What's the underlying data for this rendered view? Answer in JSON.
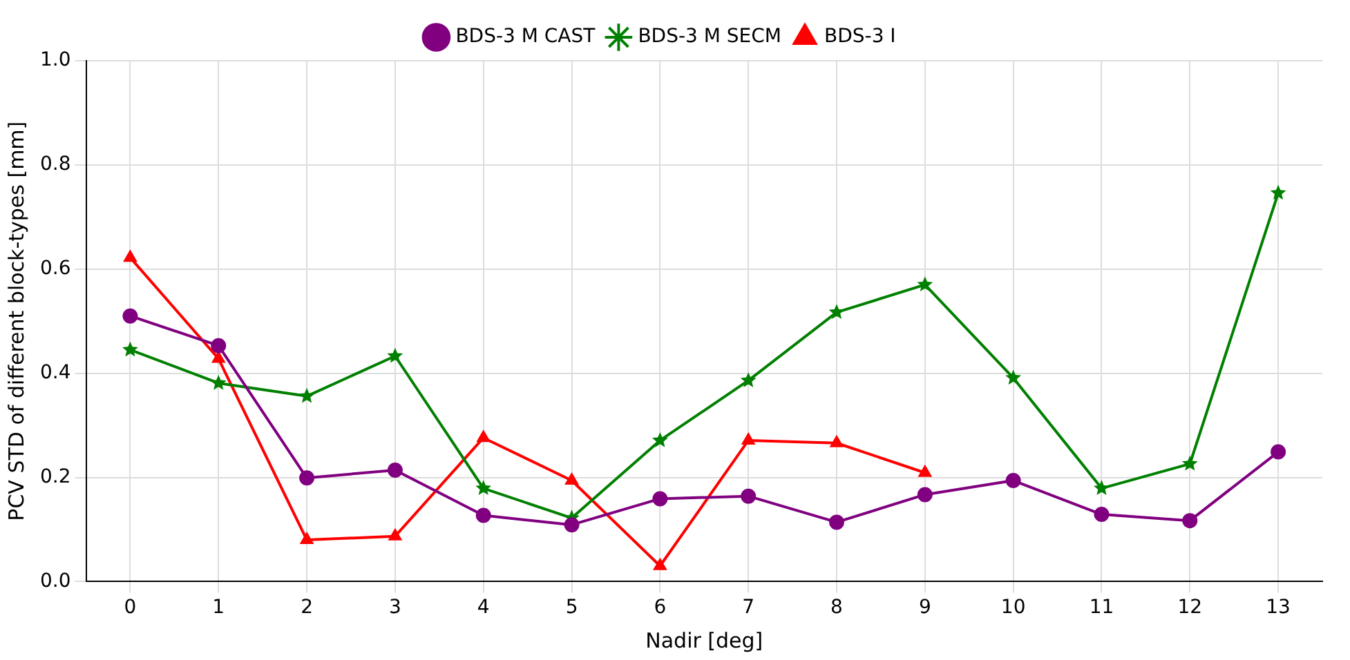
{
  "chart_data": {
    "type": "line",
    "xlabel": "Nadir [deg]",
    "ylabel": "PCV STD of different block-types [mm]",
    "x": [
      0,
      1,
      2,
      3,
      4,
      5,
      6,
      7,
      8,
      9,
      10,
      11,
      12,
      13
    ],
    "xlim": [
      -0.5,
      13.5
    ],
    "xticks": [
      0,
      1,
      2,
      3,
      4,
      5,
      6,
      7,
      8,
      9,
      10,
      11,
      12,
      13
    ],
    "ylim": [
      0,
      1
    ],
    "yticks": [
      {
        "value": 0,
        "label": "0.0"
      },
      {
        "value": 0.2,
        "label": "0.2"
      },
      {
        "value": 0.4,
        "label": "0.4"
      },
      {
        "value": 0.6,
        "label": "0.6"
      },
      {
        "value": 0.8,
        "label": "0.8"
      },
      {
        "value": 1,
        "label": "1.0"
      }
    ],
    "grid": true,
    "legend": "top",
    "line_style": "solid",
    "series": [
      {
        "name": "BDS-3 M CAST",
        "color": "#800080",
        "marker": "circle",
        "values": [
          0.51,
          0.453,
          0.199,
          0.214,
          0.127,
          0.109,
          0.159,
          0.164,
          0.114,
          0.167,
          0.194,
          0.129,
          0.117,
          0.249
        ]
      },
      {
        "name": "BDS-3 M SECM",
        "color": "#008000",
        "marker": "star",
        "values": [
          0.445,
          0.381,
          0.356,
          0.433,
          0.179,
          0.122,
          0.271,
          0.386,
          0.517,
          0.57,
          0.391,
          0.179,
          0.226,
          0.746
        ]
      },
      {
        "name": "BDS-3 I",
        "color": "#ff0000",
        "marker": "triangle",
        "values": [
          0.622,
          0.428,
          0.08,
          0.087,
          0.276,
          0.194,
          0.03,
          0.271,
          0.266,
          0.209,
          null,
          null,
          null,
          null
        ]
      }
    ]
  }
}
